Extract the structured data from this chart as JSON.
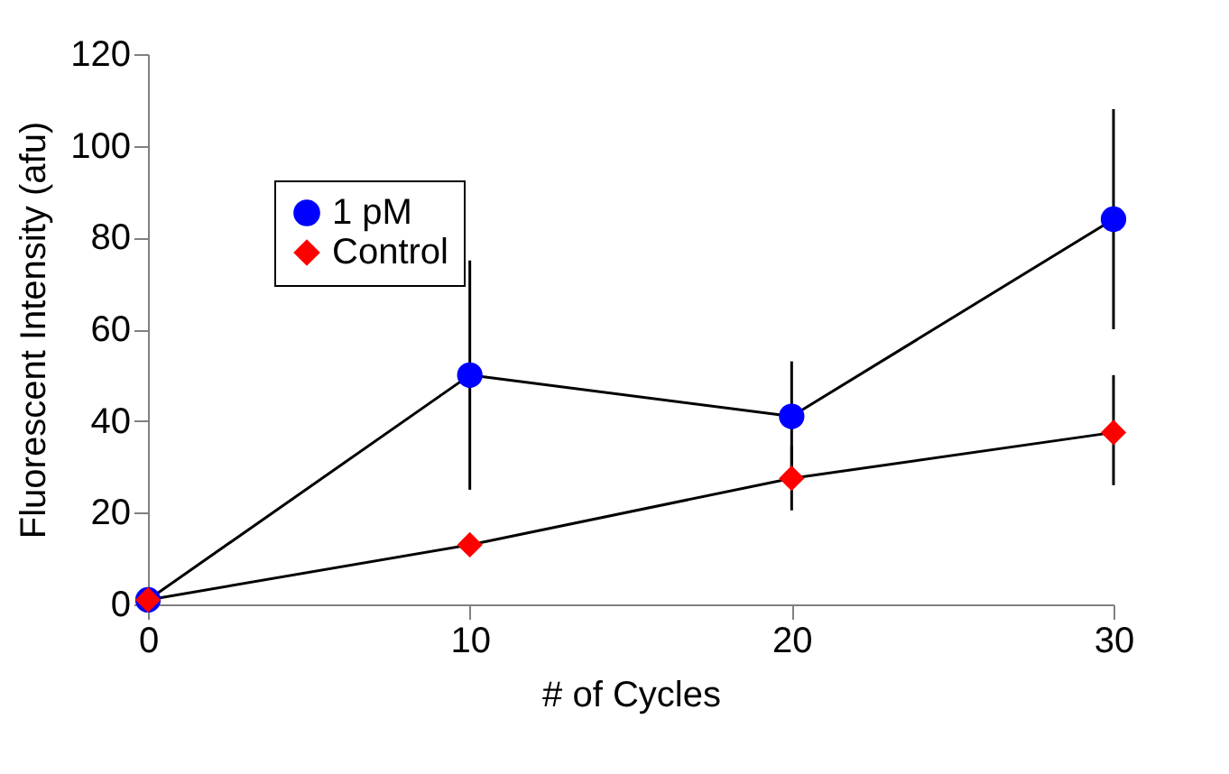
{
  "chart_data": {
    "type": "line",
    "xlabel": "# of Cycles",
    "ylabel": "Fluorescent Intensity (afu)",
    "x": [
      0,
      10,
      20,
      30
    ],
    "series": [
      {
        "name": "1 pM",
        "color": "#0000ff",
        "marker": "circle",
        "values": [
          1,
          50,
          41,
          84
        ],
        "errors": [
          null,
          [
            25,
            75
          ],
          [
            29,
            53
          ],
          [
            60,
            108
          ]
        ]
      },
      {
        "name": "Control",
        "color": "#ff0000",
        "marker": "diamond",
        "values": [
          1,
          13,
          27.5,
          37.5
        ],
        "errors": [
          null,
          null,
          [
            20.5,
            34.5
          ],
          [
            26,
            50
          ]
        ]
      }
    ],
    "xlim": [
      0,
      30
    ],
    "xticks": [
      0,
      10,
      20,
      30
    ],
    "ylim": [
      0,
      120
    ],
    "yticks": [
      0,
      20,
      40,
      60,
      80,
      100,
      120
    ],
    "grid": false,
    "legend": "top left"
  }
}
